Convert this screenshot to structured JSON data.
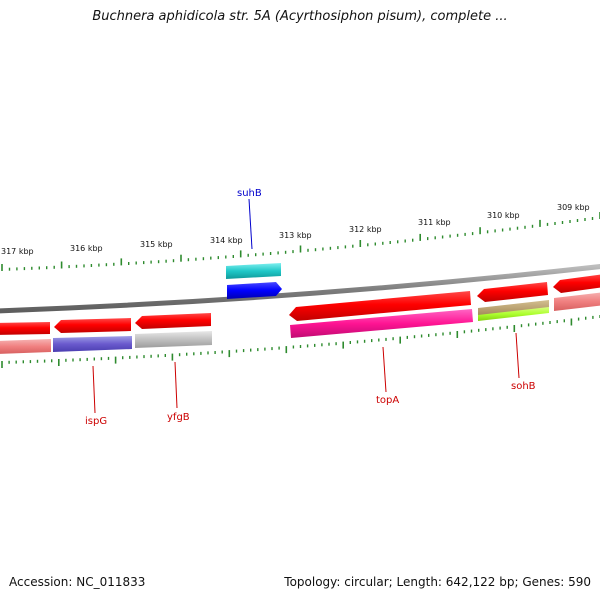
{
  "title": "Buchnera aphidicola str. 5A (Acyrthosiphon pisum), complete ...",
  "footer": {
    "accession": "Accession: NC_011833",
    "summary": "Topology: circular; Length: 642,122 bp; Genes: 590"
  },
  "colors": {
    "tick": "#2e8b2e",
    "backbone": "#7f7f7f",
    "label_red": "#cc0000",
    "label_blue": "#0000cc"
  },
  "kbp_ticks": [
    "317 kbp",
    "316 kbp",
    "315 kbp",
    "314 kbp",
    "313 kbp",
    "312 kbp",
    "311 kbp",
    "310 kbp",
    "309 kbp"
  ],
  "genes": [
    {
      "name": "ispG",
      "color": "#cc0000"
    },
    {
      "name": "yfgB",
      "color": "#cc0000"
    },
    {
      "name": "topA",
      "color": "#cc0000"
    },
    {
      "name": "sohB",
      "color": "#cc0000"
    },
    {
      "name": "suhB",
      "color": "#0000cc"
    }
  ]
}
